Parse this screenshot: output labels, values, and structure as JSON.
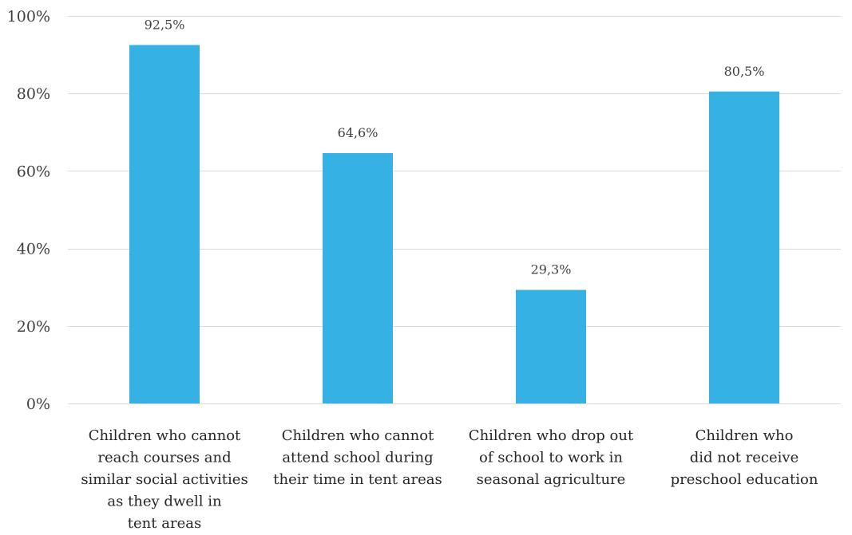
{
  "chart_data": {
    "type": "bar",
    "categories": [
      [
        "Children who cannot",
        "reach courses and",
        "similar social activities",
        "as they dwell in",
        "tent areas"
      ],
      [
        "Children who cannot",
        "attend school during",
        "their time in tent areas"
      ],
      [
        "Children who drop out",
        "of school to work in",
        "seasonal agriculture"
      ],
      [
        "Children who",
        "did not receive",
        "preschool education"
      ]
    ],
    "values": [
      92.5,
      64.6,
      29.3,
      80.5
    ],
    "data_labels": [
      "92,5%",
      "64,6%",
      "29,3%",
      "80,5%"
    ],
    "ylim": [
      0,
      100
    ],
    "yticks": [
      0,
      20,
      40,
      60,
      80,
      100
    ],
    "ytick_labels": [
      "0%",
      "20%",
      "40%",
      "60%",
      "80%",
      "100%"
    ],
    "grid": true,
    "legend": "none",
    "colors": {
      "bar": "#35b1e3",
      "grid": "#d9d9d9",
      "text": "#404040"
    }
  }
}
